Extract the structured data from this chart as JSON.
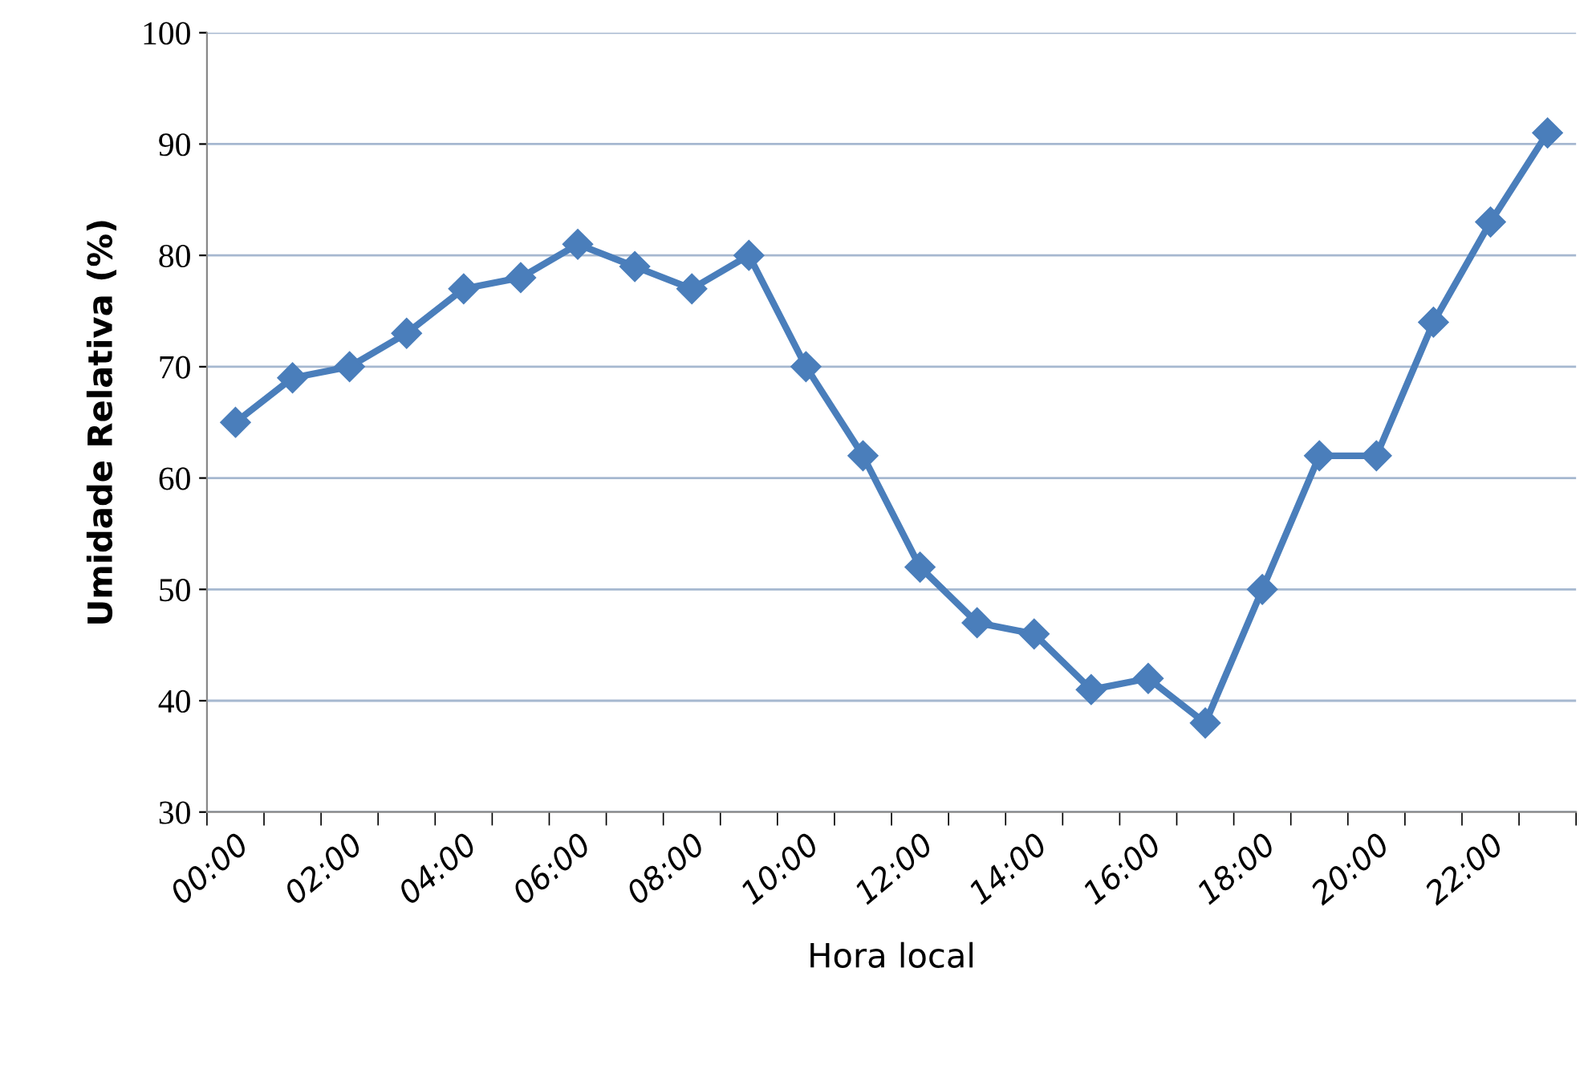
{
  "chart_data": {
    "type": "line",
    "xlabel": "Hora local",
    "ylabel": "Umidade Relativa (%)",
    "categories": [
      "00:00",
      null,
      "02:00",
      null,
      "04:00",
      null,
      "06:00",
      null,
      "08:00",
      null,
      "10:00",
      null,
      "12:00",
      null,
      "14:00",
      null,
      "16:00",
      null,
      "18:00",
      null,
      "20:00",
      null,
      "22:00",
      null
    ],
    "series": [
      {
        "color": "#4a7ebb",
        "values": [
          65,
          69,
          70,
          73,
          77,
          78,
          81,
          79,
          77,
          80,
          70,
          62,
          52,
          47,
          46,
          41,
          42,
          38,
          50,
          62,
          62,
          74,
          83,
          91
        ]
      }
    ],
    "ylim": [
      30,
      100
    ],
    "yticks": [
      30,
      40,
      50,
      60,
      70,
      80,
      90,
      100
    ],
    "grid": "y",
    "marker": "diamond",
    "line_style": "solid",
    "legend": false
  }
}
